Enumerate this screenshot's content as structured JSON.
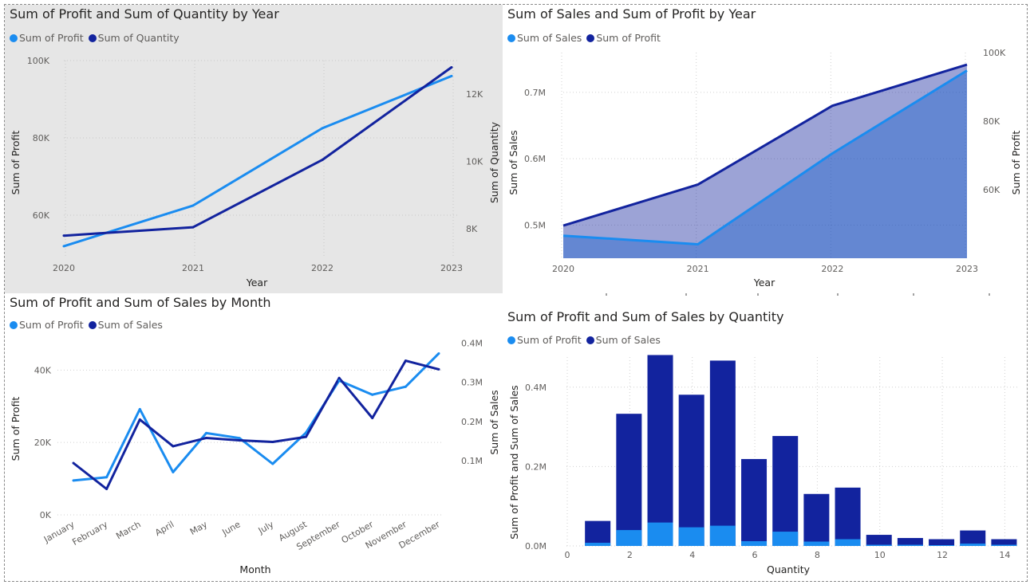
{
  "colors": {
    "light": "#1a8cf0",
    "dark": "#12239e"
  },
  "chart_data": [
    {
      "type": "line",
      "title": "Sum of Profit and Sum of Quantity by Year",
      "xlabel": "Year",
      "ylabel": "Sum of Profit",
      "y2label": "Sum of Quantity",
      "categories": [
        "2020",
        "2021",
        "2022",
        "2023"
      ],
      "series": [
        {
          "name": "Sum of Profit",
          "axis": "left",
          "values": [
            52000,
            62500,
            82500,
            96000
          ]
        },
        {
          "name": "Sum of Quantity",
          "axis": "right",
          "values": [
            7800,
            8050,
            10050,
            12800
          ]
        }
      ],
      "ylim": [
        49500,
        100000
      ],
      "y2lim": [
        7200,
        13000
      ],
      "yticks": [
        {
          "v": 60000,
          "label": "60K"
        },
        {
          "v": 80000,
          "label": "80K"
        },
        {
          "v": 100000,
          "label": "100K"
        }
      ],
      "y2ticks": [
        {
          "v": 8000,
          "label": "8K"
        },
        {
          "v": 10000,
          "label": "10K"
        },
        {
          "v": 12000,
          "label": "12K"
        }
      ],
      "grid": true
    },
    {
      "type": "area",
      "title": "Sum of Sales and Sum of Profit by Year",
      "xlabel": "Year",
      "ylabel": "Sum of Sales",
      "y2label": "Sum of Profit",
      "categories": [
        "2020",
        "2021",
        "2022",
        "2023"
      ],
      "series": [
        {
          "name": "Sum of Sales",
          "axis": "left",
          "values": [
            484000,
            471000,
            608000,
            733000
          ]
        },
        {
          "name": "Sum of Profit",
          "axis": "right",
          "values": [
            49500,
            61500,
            84500,
            96500
          ]
        }
      ],
      "ylim": [
        450000,
        760000
      ],
      "y2lim": [
        40000,
        100000
      ],
      "yticks": [
        {
          "v": 500000,
          "label": "0.5M"
        },
        {
          "v": 600000,
          "label": "0.6M"
        },
        {
          "v": 700000,
          "label": "0.7M"
        }
      ],
      "y2ticks": [
        {
          "v": 60000,
          "label": "60K"
        },
        {
          "v": 80000,
          "label": "80K"
        },
        {
          "v": 100000,
          "label": "100K"
        }
      ],
      "grid": true
    },
    {
      "type": "line",
      "title": "Sum of Profit and Sum of Sales by Month",
      "xlabel": "Month",
      "ylabel": "Sum of Profit",
      "categories": [
        "January",
        "February",
        "March",
        "April",
        "May",
        "June",
        "July",
        "August",
        "September",
        "October",
        "November",
        "December"
      ],
      "series": [
        {
          "name": "Sum of Profit",
          "axis": "left",
          "values": [
            9500,
            10400,
            29200,
            11800,
            22600,
            21200,
            14100,
            22700,
            37100,
            33200,
            35400,
            44600
          ]
        },
        {
          "name": "Sum of Sales",
          "axis": "right",
          "values": [
            94000,
            28000,
            205000,
            137000,
            158000,
            152000,
            148000,
            161000,
            311000,
            209000,
            355000,
            333000
          ]
        }
      ],
      "ylim": [
        0,
        48000
      ],
      "y2lim": [
        -38000,
        405000
      ],
      "yticks": [
        {
          "v": 0,
          "label": "0K"
        },
        {
          "v": 20000,
          "label": "20K"
        },
        {
          "v": 40000,
          "label": "40K"
        }
      ],
      "y2ticks": [
        {
          "v": 100000,
          "label": "0.1M"
        },
        {
          "v": 200000,
          "label": "0.2M"
        },
        {
          "v": 300000,
          "label": "0.3M"
        },
        {
          "v": 400000,
          "label": "0.4M"
        }
      ],
      "grid": true
    },
    {
      "type": "bar",
      "title": "Sum of Profit and Sum of Sales by Quantity",
      "xlabel": "Quantity",
      "ylabel": "Sum of Profit and Sum of Sales",
      "ylabel2": "Sum of Sales",
      "x": [
        1,
        2,
        3,
        4,
        5,
        6,
        7,
        8,
        9,
        10,
        11,
        12,
        13,
        14
      ],
      "series": [
        {
          "name": "Sum of Profit",
          "values": [
            8000,
            40000,
            59000,
            47000,
            51000,
            12000,
            36000,
            11000,
            17000,
            3000,
            3000,
            2000,
            6000,
            3000
          ]
        },
        {
          "name": "Sum of Sales",
          "values": [
            63000,
            333000,
            481000,
            381000,
            467000,
            219000,
            277000,
            131000,
            147000,
            28000,
            20000,
            17000,
            39000,
            17000
          ]
        }
      ],
      "xlim": [
        0,
        14.5
      ],
      "xticks": [
        0,
        2,
        4,
        6,
        8,
        10,
        12,
        14
      ],
      "ylim": [
        0,
        500000
      ],
      "yticks": [
        {
          "v": 0,
          "label": "0.0M"
        },
        {
          "v": 200000,
          "label": "0.2M"
        },
        {
          "v": 400000,
          "label": "0.4M"
        }
      ],
      "grid": true
    }
  ]
}
